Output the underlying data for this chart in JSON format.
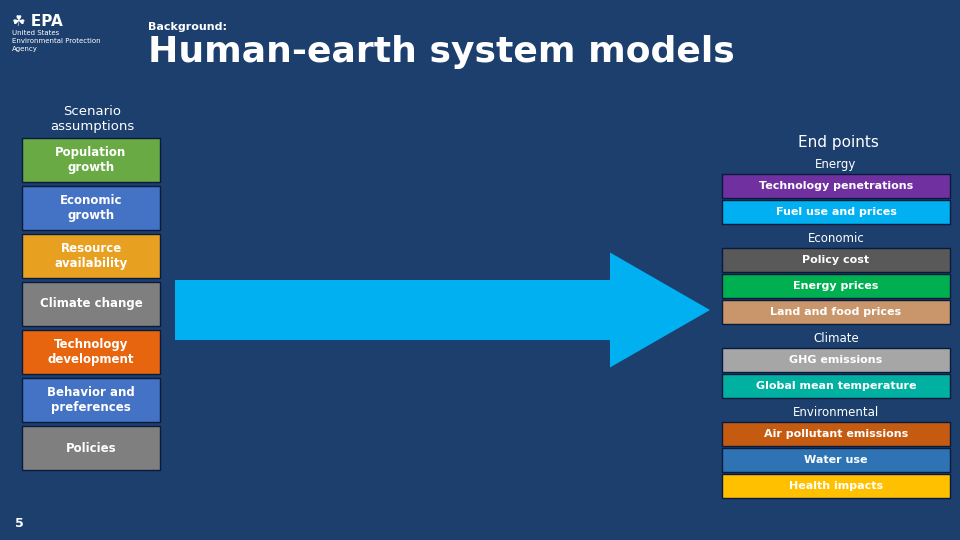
{
  "bg_color": "#1c3f6e",
  "title_label": "Background:",
  "title_main": "Human-earth system models",
  "subtitle_left": "Scenario\nassumptions",
  "subtitle_right": "End points",
  "left_boxes": [
    {
      "label": "Population\ngrowth",
      "color": "#6aaa44"
    },
    {
      "label": "Economic\ngrowth",
      "color": "#4472c4"
    },
    {
      "label": "Resource\navailability",
      "color": "#e8a020"
    },
    {
      "label": "Climate change",
      "color": "#7f7f7f"
    },
    {
      "label": "Technology\ndevelopment",
      "color": "#e86510"
    },
    {
      "label": "Behavior and\npreferences",
      "color": "#4472c4"
    },
    {
      "label": "Policies",
      "color": "#7f7f7f"
    }
  ],
  "right_groups": [
    {
      "header": "Energy",
      "items": [
        {
          "label": "Technology penetrations",
          "color": "#7030a0"
        },
        {
          "label": "Fuel use and prices",
          "color": "#00b0f0"
        }
      ]
    },
    {
      "header": "Economic",
      "items": [
        {
          "label": "Policy cost",
          "color": "#595959"
        },
        {
          "label": "Energy prices",
          "color": "#00b050"
        },
        {
          "label": "Land and food prices",
          "color": "#c9956a"
        }
      ]
    },
    {
      "header": "Climate",
      "items": [
        {
          "label": "GHG emissions",
          "color": "#a6a6a6"
        },
        {
          "label": "Global mean temperature",
          "color": "#00b0a0"
        }
      ]
    },
    {
      "header": "Environmental",
      "items": [
        {
          "label": "Air pollutant emissions",
          "color": "#c55a11"
        },
        {
          "label": "Water use",
          "color": "#2e74b5"
        },
        {
          "label": "Health impacts",
          "color": "#ffc000"
        }
      ]
    }
  ],
  "arrow_color": "#00b0f0",
  "text_color": "#ffffff",
  "page_num": "5"
}
